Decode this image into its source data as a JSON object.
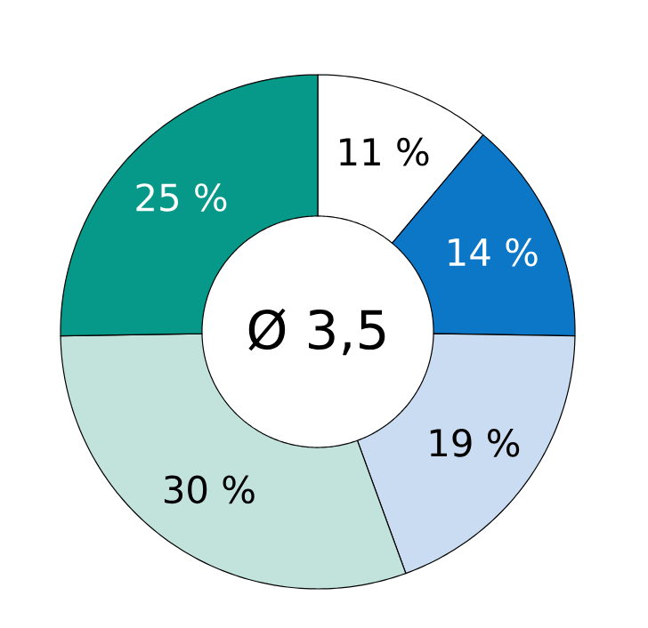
{
  "chart_data": {
    "type": "donut",
    "categories": [
      null,
      null,
      null,
      null,
      null
    ],
    "values": [
      11,
      14,
      19,
      30,
      25
    ],
    "value_labels": [
      "11 %",
      "14 %",
      "19 %",
      "30 %",
      "25 %"
    ],
    "colors": [
      "#ffffff",
      "#0b77c6",
      "#c9dcf1",
      "#c2e3dc",
      "#069888"
    ],
    "annotations": [
      "Ø 3,5"
    ]
  }
}
